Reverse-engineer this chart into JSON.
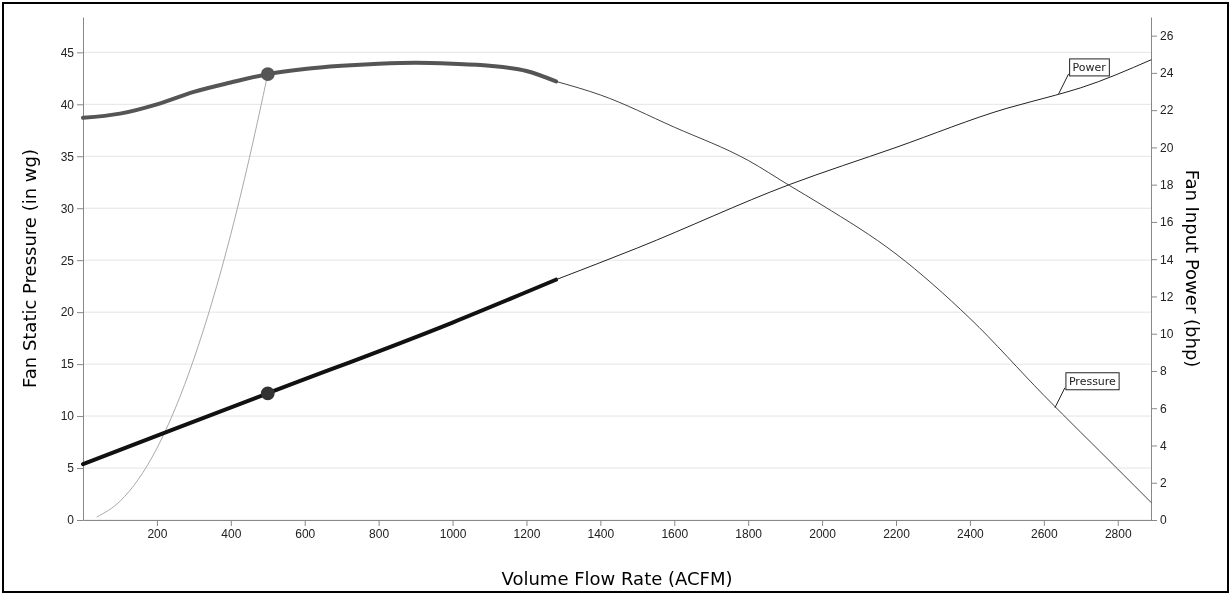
{
  "chart_data": {
    "type": "line",
    "xlabel": "Volume Flow Rate (ACFM)",
    "ylabel": "Fan Static Pressure (in wg)",
    "y2label": "Fan Input Power (bhp)",
    "xlim": [
      0,
      2890
    ],
    "xticks": [
      200,
      400,
      600,
      800,
      1000,
      1200,
      1400,
      1600,
      1800,
      2000,
      2200,
      2400,
      2600,
      2800
    ],
    "ylim": [
      0,
      48.4
    ],
    "yticks": [
      0,
      5,
      10,
      15,
      20,
      25,
      30,
      35,
      40,
      45
    ],
    "y2lim": [
      0,
      27
    ],
    "y2ticks": [
      0,
      2,
      4,
      6,
      8,
      10,
      12,
      14,
      16,
      18,
      20,
      22,
      24,
      26
    ],
    "grid": "y",
    "marker": "none",
    "line_style": "solid",
    "series": [
      {
        "color": "#aaaaaa",
        "axis": "y",
        "x": [
          38,
          100,
          200,
          300,
          400,
          450,
          500
        ],
        "values": [
          0.3,
          1.8,
          6.9,
          15.5,
          27.5,
          34.8,
          42.9
        ]
      },
      {
        "color": "#555555",
        "axis": "y",
        "x": [
          0,
          100,
          200,
          300,
          400,
          500,
          600,
          700,
          800,
          900,
          1000,
          1100,
          1200,
          1280
        ],
        "values": [
          38.7,
          39.1,
          40.0,
          41.2,
          42.1,
          42.9,
          43.4,
          43.7,
          43.9,
          44.0,
          43.9,
          43.7,
          43.2,
          42.2
        ]
      },
      {
        "color": "#444444",
        "axis": "y",
        "x": [
          1280,
          1400,
          1600,
          1800,
          1911,
          2000,
          2200,
          2400,
          2600,
          2800,
          2890
        ],
        "values": [
          42.2,
          40.9,
          37.8,
          34.6,
          32.2,
          30.3,
          25.6,
          19.4,
          12.0,
          4.9,
          1.7
        ]
      },
      {
        "color": "#111111",
        "axis": "y2",
        "x": [
          0,
          500,
          1000,
          1280
        ],
        "values": [
          3.0,
          6.8,
          10.6,
          12.9
        ]
      },
      {
        "color": "#222222",
        "axis": "y2",
        "x": [
          1280,
          1500,
          1911,
          2200,
          2500,
          2631,
          2700,
          2890
        ],
        "values": [
          12.9,
          14.6,
          18.0,
          20.0,
          22.1,
          22.8,
          23.2,
          24.7
        ]
      },
      {
        "type": "scatter",
        "marker": "circle",
        "color": "#555555",
        "axis": "y",
        "x": [
          500
        ],
        "values": [
          42.9
        ]
      },
      {
        "type": "scatter",
        "marker": "circle",
        "color": "#333333",
        "axis": "y2",
        "x": [
          500
        ],
        "values": [
          6.8
        ]
      }
    ],
    "annotations": [
      {
        "text": "Power",
        "x": 2640,
        "y": 41.0
      },
      {
        "text": "Pressure",
        "x": 2630,
        "y": 10.8
      }
    ]
  }
}
